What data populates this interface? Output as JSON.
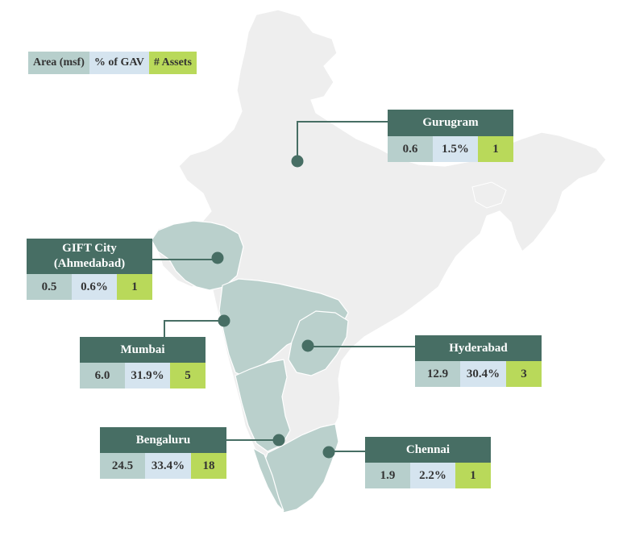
{
  "legend": {
    "area": "Area (msf)",
    "gav": "% of GAV",
    "assets": "# Assets"
  },
  "cities": {
    "gurugram": {
      "name": "Gurugram",
      "area": "0.6",
      "gav": "1.5%",
      "assets": "1"
    },
    "gift": {
      "name": "GIFT City\n(Ahmedabad)",
      "area": "0.5",
      "gav": "0.6%",
      "assets": "1"
    },
    "mumbai": {
      "name": "Mumbai",
      "area": "6.0",
      "gav": "31.9%",
      "assets": "5"
    },
    "hyderabad": {
      "name": "Hyderabad",
      "area": "12.9",
      "gav": "30.4%",
      "assets": "3"
    },
    "bengaluru": {
      "name": "Bengaluru",
      "area": "24.5",
      "gav": "33.4%",
      "assets": "18"
    },
    "chennai": {
      "name": "Chennai",
      "area": "1.9",
      "gav": "2.2%",
      "assets": "1"
    }
  },
  "colors": {
    "map_base": "#eeeeee",
    "map_highlight": "#bad0cc",
    "header": "#476e64",
    "area_cell": "#b7cfcc",
    "gav_cell": "#d5e4ef",
    "assets_cell": "#b9d95a"
  }
}
